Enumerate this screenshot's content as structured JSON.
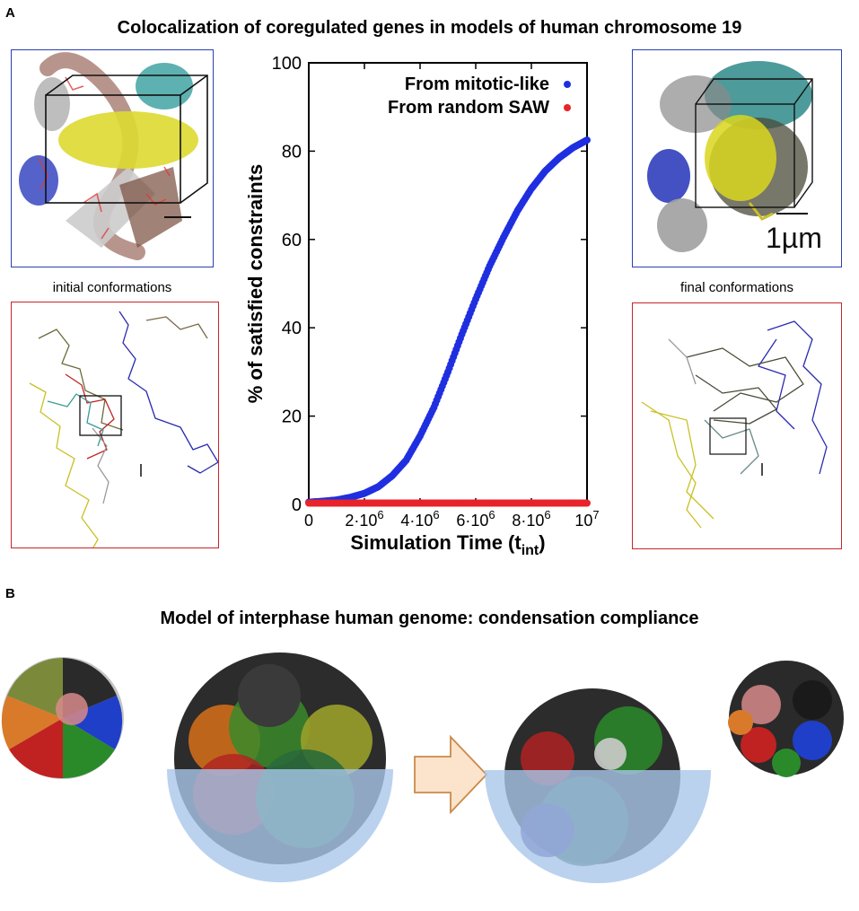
{
  "panel_a": {
    "letter": "A",
    "title": "Colocalization of coregulated genes in models of human chromosome 19",
    "left_caption": "initial conformations",
    "right_caption": "final conformations",
    "scale_label": "1µm",
    "colors": {
      "blue_frame": "#2b3fb3",
      "red_frame": "#c8242a"
    }
  },
  "panel_b": {
    "letter": "B",
    "title": "Model of interphase human genome: condensation compliance",
    "colors": {
      "hemisphere": "#a9c7ea",
      "arrow_fill": "#fbe3cc",
      "arrow_stroke": "#c98a4a"
    }
  },
  "chart_data": {
    "type": "scatter",
    "xlabel": "Simulation Time (t",
    "xlabel_sub": "int",
    "xlabel_close": ")",
    "ylabel": "% of satisfied constraints",
    "xlim": [
      0,
      10000000
    ],
    "ylim": [
      0,
      100
    ],
    "x_ticks": [
      {
        "value": 0,
        "base": "0",
        "exp": ""
      },
      {
        "value": 2000000,
        "base": "2·10",
        "exp": "6"
      },
      {
        "value": 4000000,
        "base": "4·10",
        "exp": "6"
      },
      {
        "value": 6000000,
        "base": "6·10",
        "exp": "6"
      },
      {
        "value": 8000000,
        "base": "8·10",
        "exp": "6"
      },
      {
        "value": 10000000,
        "base": "10",
        "exp": "7"
      }
    ],
    "y_ticks": [
      "0",
      "20",
      "40",
      "60",
      "80",
      "100"
    ],
    "series": [
      {
        "name": "From mitotic-like",
        "color": "#1f2fe0",
        "x": [
          0,
          500000,
          1000000,
          1500000,
          2000000,
          2500000,
          3000000,
          3500000,
          4000000,
          4500000,
          5000000,
          5500000,
          6000000,
          6500000,
          7000000,
          7500000,
          8000000,
          8500000,
          9000000,
          9500000,
          10000000
        ],
        "y": [
          0.5,
          0.7,
          1.0,
          1.6,
          2.5,
          4.0,
          6.5,
          10.0,
          15.5,
          22.0,
          30.0,
          38.5,
          46.5,
          54.0,
          60.5,
          66.5,
          71.5,
          75.5,
          78.5,
          80.8,
          82.5
        ]
      },
      {
        "name": "From random SAW",
        "color": "#e8232a",
        "x": [
          0,
          500000,
          1000000,
          1500000,
          2000000,
          2500000,
          3000000,
          3500000,
          4000000,
          4500000,
          5000000,
          5500000,
          6000000,
          6500000,
          7000000,
          7500000,
          8000000,
          8500000,
          9000000,
          9500000,
          10000000
        ],
        "y": [
          0.3,
          0.3,
          0.3,
          0.3,
          0.3,
          0.3,
          0.3,
          0.3,
          0.3,
          0.3,
          0.3,
          0.3,
          0.3,
          0.3,
          0.3,
          0.3,
          0.3,
          0.3,
          0.3,
          0.3,
          0.3
        ]
      }
    ]
  }
}
